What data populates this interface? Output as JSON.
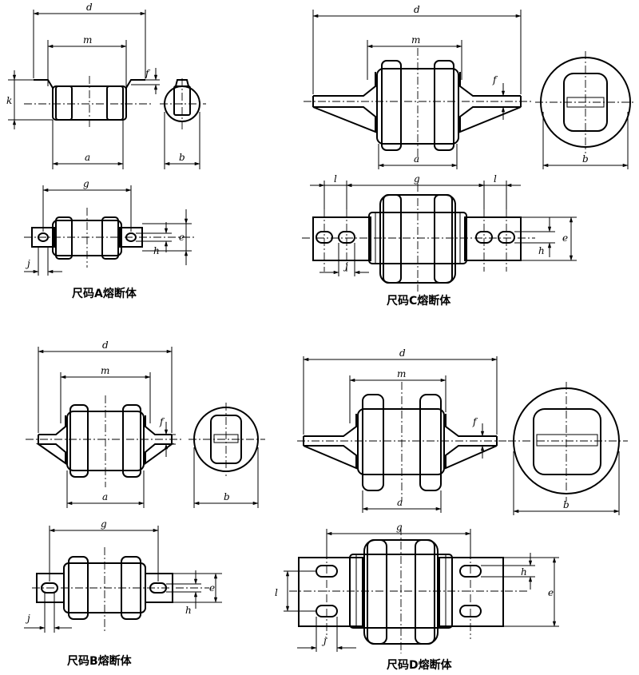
{
  "captions": {
    "a": "尺码A熔断体",
    "b": "尺码B熔断体",
    "c": "尺码C熔断体",
    "d": "尺码D熔断体"
  },
  "dims": {
    "a": "a",
    "b": "b",
    "d": "d",
    "e": "e",
    "f": "f",
    "g": "g",
    "h": "h",
    "j": "j",
    "k": "k",
    "l": "l",
    "m": "m"
  }
}
